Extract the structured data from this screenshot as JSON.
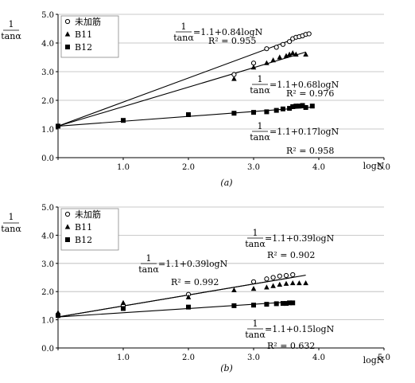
{
  "chart_data": [
    {
      "type": "scatter",
      "panel_label": "(a)",
      "ylabel_numerator": "1",
      "ylabel_denominator": "tanα",
      "xlabel": "logN",
      "xlim": [
        0,
        5
      ],
      "ylim": [
        0,
        5
      ],
      "xticks": [
        "",
        "1.0",
        "2.0",
        "3.0",
        "4.0",
        "5.0"
      ],
      "yticks": [
        "0.0",
        "1.0",
        "2.0",
        "3.0",
        "4.0",
        "5.0"
      ],
      "grid": "horizontal",
      "legend_position": "top-left",
      "series": [
        {
          "name": "未加筋",
          "marker": "circle-open",
          "points": [
            [
              0,
              1.1
            ],
            [
              2.7,
              2.9
            ],
            [
              3.0,
              3.3
            ],
            [
              3.2,
              3.8
            ],
            [
              3.35,
              3.85
            ],
            [
              3.45,
              3.95
            ],
            [
              3.55,
              4.05
            ],
            [
              3.6,
              4.15
            ],
            [
              3.65,
              4.2
            ],
            [
              3.7,
              4.22
            ],
            [
              3.75,
              4.25
            ],
            [
              3.8,
              4.3
            ],
            [
              3.85,
              4.32
            ]
          ],
          "fit": {
            "intercept": 1.1,
            "slope": 0.84,
            "equation": "=1.1+0.84logN",
            "r2": "R² = 0.955",
            "x_end": 3.85
          }
        },
        {
          "name": "B11",
          "marker": "triangle",
          "points": [
            [
              0,
              1.1
            ],
            [
              2.7,
              2.75
            ],
            [
              3.0,
              3.15
            ],
            [
              3.2,
              3.3
            ],
            [
              3.3,
              3.4
            ],
            [
              3.4,
              3.5
            ],
            [
              3.5,
              3.55
            ],
            [
              3.55,
              3.6
            ],
            [
              3.6,
              3.65
            ],
            [
              3.65,
              3.6
            ],
            [
              3.8,
              3.6
            ]
          ],
          "fit": {
            "intercept": 1.1,
            "slope": 0.68,
            "equation": "=1.1+0.68logN",
            "r2": "R² = 0.976",
            "x_end": 3.8
          }
        },
        {
          "name": "B12",
          "marker": "square",
          "points": [
            [
              0,
              1.1
            ],
            [
              1.0,
              1.3
            ],
            [
              2.0,
              1.5
            ],
            [
              2.7,
              1.55
            ],
            [
              3.0,
              1.58
            ],
            [
              3.2,
              1.6
            ],
            [
              3.35,
              1.65
            ],
            [
              3.45,
              1.7
            ],
            [
              3.55,
              1.72
            ],
            [
              3.6,
              1.78
            ],
            [
              3.65,
              1.8
            ],
            [
              3.7,
              1.8
            ],
            [
              3.75,
              1.82
            ],
            [
              3.8,
              1.75
            ],
            [
              3.9,
              1.8
            ]
          ],
          "fit": {
            "intercept": 1.1,
            "slope": 0.17,
            "equation": "=1.1+0.17logN",
            "r2": "R² = 0.958",
            "x_end": 3.9
          }
        }
      ]
    },
    {
      "type": "scatter",
      "panel_label": "(b)",
      "ylabel_numerator": "1",
      "ylabel_denominator": "tanα",
      "xlabel": "logN",
      "xlim": [
        0,
        5
      ],
      "ylim": [
        0,
        5
      ],
      "xticks": [
        "",
        "1.0",
        "2.0",
        "3.0",
        "4.0",
        "5.0"
      ],
      "yticks": [
        "0.0",
        "1.0",
        "2.0",
        "3.0",
        "4.0",
        "5.0"
      ],
      "grid": "horizontal",
      "legend_position": "top-left",
      "series": [
        {
          "name": "未加筋",
          "marker": "circle-open",
          "points": [
            [
              0,
              1.15
            ],
            [
              1.0,
              1.5
            ],
            [
              2.0,
              1.9
            ],
            [
              3.0,
              2.35
            ],
            [
              3.2,
              2.45
            ],
            [
              3.3,
              2.5
            ],
            [
              3.4,
              2.55
            ],
            [
              3.5,
              2.57
            ],
            [
              3.6,
              2.6
            ]
          ],
          "fit": {
            "intercept": 1.1,
            "slope": 0.39,
            "equation": "=1.1+0.39logN",
            "r2": "R² = 0.902",
            "x_end": 3.6
          }
        },
        {
          "name": "B11",
          "marker": "triangle",
          "points": [
            [
              0,
              1.25
            ],
            [
              1.0,
              1.6
            ],
            [
              2.0,
              1.8
            ],
            [
              2.7,
              2.05
            ],
            [
              3.0,
              2.1
            ],
            [
              3.2,
              2.15
            ],
            [
              3.3,
              2.2
            ],
            [
              3.4,
              2.25
            ],
            [
              3.5,
              2.28
            ],
            [
              3.6,
              2.3
            ],
            [
              3.7,
              2.3
            ],
            [
              3.8,
              2.3
            ]
          ],
          "fit": {
            "intercept": 1.1,
            "slope": 0.39,
            "equation": "=1.1+0.39logN",
            "r2": "R² = 0.992",
            "x_end": 3.8
          }
        },
        {
          "name": "B12",
          "marker": "square",
          "points": [
            [
              0,
              1.15
            ],
            [
              1.0,
              1.4
            ],
            [
              2.0,
              1.45
            ],
            [
              2.7,
              1.5
            ],
            [
              3.0,
              1.52
            ],
            [
              3.2,
              1.55
            ],
            [
              3.35,
              1.57
            ],
            [
              3.45,
              1.58
            ],
            [
              3.5,
              1.58
            ],
            [
              3.55,
              1.6
            ],
            [
              3.6,
              1.6
            ]
          ],
          "fit": {
            "intercept": 1.1,
            "slope": 0.15,
            "equation": "=1.1+0.15logN",
            "r2": "R² = 0.632",
            "x_end": 3.6
          }
        }
      ]
    }
  ]
}
